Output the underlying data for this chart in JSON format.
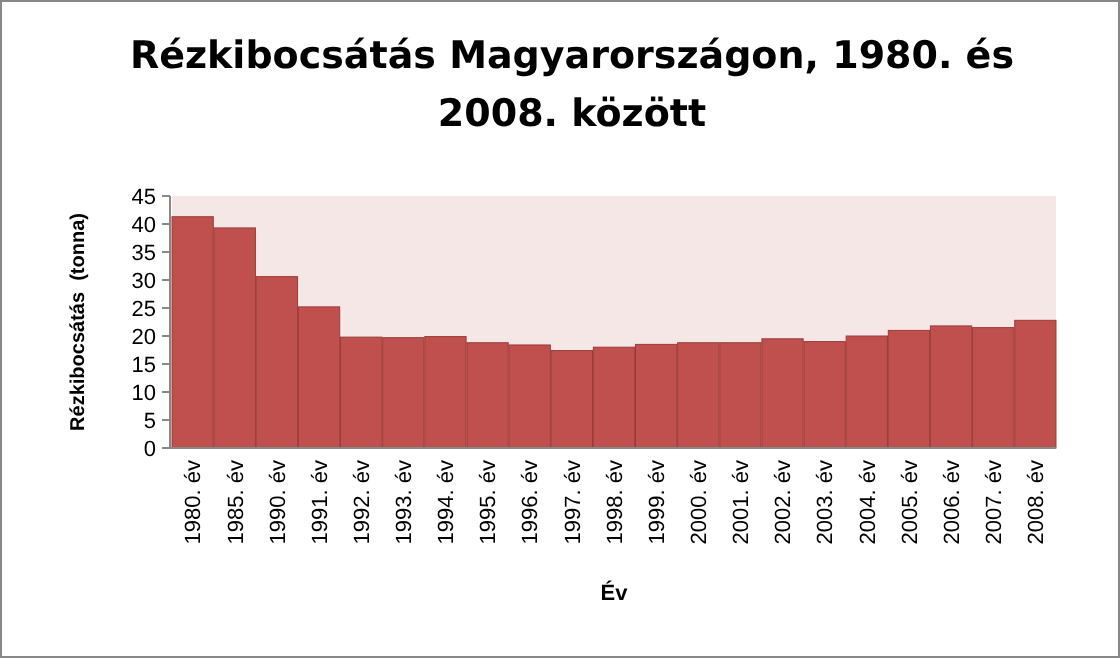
{
  "chart_data": {
    "type": "bar",
    "title": "Rézkibocsátás Magyarországon, 1980. és 2008. között",
    "xlabel": "Év",
    "ylabel": "Rézkibocsátás  (tonna)",
    "categories": [
      "1980. év",
      "1985. év",
      "1990. év",
      "1991. év",
      "1992. év",
      "1993. év",
      "1994. év",
      "1995. év",
      "1996. év",
      "1997. év",
      "1998. év",
      "1999. év",
      "2000. év",
      "2001. év",
      "2002. év",
      "2003. év",
      "2004. év",
      "2005. év",
      "2006. év",
      "2007. év",
      "2008. év"
    ],
    "values": [
      41.3,
      39.3,
      30.6,
      25.2,
      19.8,
      19.7,
      19.9,
      18.8,
      18.4,
      17.4,
      18,
      18.5,
      18.8,
      18.8,
      19.5,
      19,
      20,
      21,
      21.8,
      21.5,
      22.8
    ],
    "color": "#c0504d",
    "ylim": [
      0,
      45
    ],
    "yticks": [
      0,
      5,
      10,
      15,
      20,
      25,
      30,
      35,
      40,
      45
    ]
  }
}
